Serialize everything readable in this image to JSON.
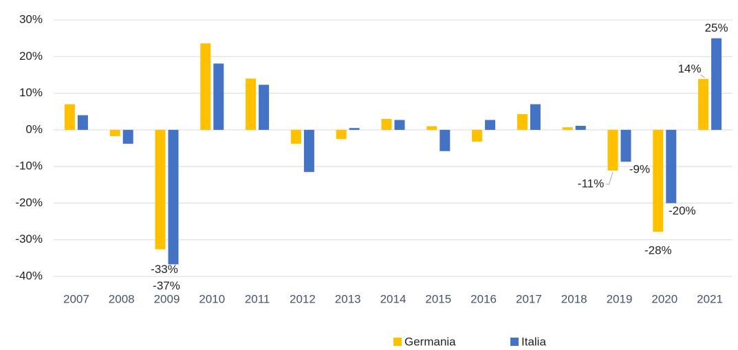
{
  "chart_data": {
    "type": "bar",
    "categories": [
      "2007",
      "2008",
      "2009",
      "2010",
      "2011",
      "2012",
      "2013",
      "2014",
      "2015",
      "2016",
      "2017",
      "2018",
      "2019",
      "2020",
      "2021"
    ],
    "series": [
      {
        "name": "Germania",
        "color": "#ffc000",
        "values": [
          7,
          -1.7,
          -32.6,
          23.6,
          14,
          -3.8,
          -2.5,
          3,
          1,
          -3.2,
          4.3,
          0.7,
          -11.1,
          -27.8,
          13.9
        ],
        "value_labels": [
          null,
          null,
          "-33%",
          null,
          null,
          null,
          null,
          null,
          null,
          null,
          null,
          null,
          "-11%",
          "-28%",
          "14%"
        ]
      },
      {
        "name": "Italia",
        "color": "#4472c4",
        "values": [
          4,
          -3.8,
          -36.7,
          18.1,
          12.3,
          -11.5,
          0.5,
          2.7,
          -5.8,
          2.7,
          7,
          1.1,
          -8.7,
          -20,
          25
        ],
        "value_labels": [
          null,
          null,
          "-37%",
          null,
          null,
          null,
          null,
          null,
          null,
          null,
          null,
          null,
          "-9%",
          "-20%",
          "25%"
        ]
      }
    ],
    "ylim": [
      -40,
      30
    ],
    "yticks": [
      {
        "value": -40,
        "label": "-40%"
      },
      {
        "value": -30,
        "label": "-30%"
      },
      {
        "value": -20,
        "label": "-20%"
      },
      {
        "value": -10,
        "label": "-10%"
      },
      {
        "value": 0,
        "label": "0%"
      },
      {
        "value": 10,
        "label": "10%"
      },
      {
        "value": 20,
        "label": "20%"
      },
      {
        "value": 30,
        "label": "30%"
      }
    ],
    "grid": true,
    "legend": "bottom"
  }
}
